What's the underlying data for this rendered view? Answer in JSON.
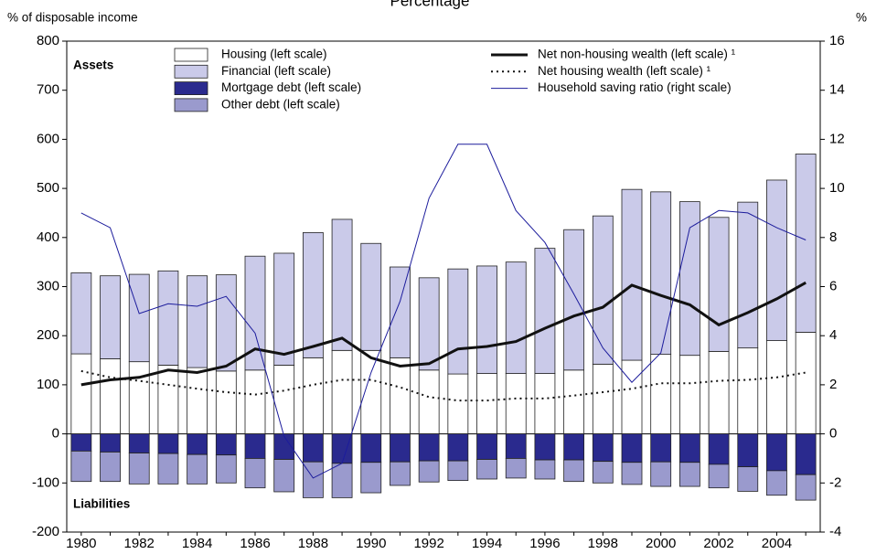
{
  "chart_data": {
    "type": "bar",
    "title": "Percentage",
    "y_label": "% of disposable income",
    "y2_label": "%",
    "annotations": [
      "Assets",
      "Liabilities"
    ],
    "categories": [
      "1980",
      null,
      "1982",
      null,
      "1984",
      null,
      "1986",
      null,
      "1988",
      null,
      "1990",
      null,
      "1992",
      null,
      "1994",
      null,
      "1996",
      null,
      "1998",
      null,
      "2000",
      null,
      "2002",
      null,
      "2004",
      null
    ],
    "stacked": true,
    "series": [
      {
        "name": "Housing (left scale)",
        "type": "bar",
        "color": "#ffffff",
        "values": [
          163,
          153,
          147,
          140,
          135,
          128,
          130,
          140,
          155,
          170,
          170,
          155,
          130,
          122,
          123,
          123,
          123,
          130,
          142,
          150,
          162,
          160,
          168,
          175,
          190,
          207
        ]
      },
      {
        "name": "Financial (left scale)",
        "type": "bar",
        "color": "#cacae9",
        "values": [
          165,
          169,
          178,
          192,
          187,
          196,
          232,
          228,
          255,
          267,
          218,
          185,
          188,
          214,
          219,
          227,
          255,
          286,
          302,
          348,
          331,
          313,
          273,
          297,
          327,
          363
        ]
      },
      {
        "name": "Mortgage debt (left scale)",
        "type": "bar",
        "color": "#2a2a8e",
        "values": [
          -35,
          -37,
          -39,
          -40,
          -42,
          -43,
          -50,
          -52,
          -57,
          -60,
          -58,
          -57,
          -55,
          -55,
          -52,
          -50,
          -53,
          -53,
          -56,
          -58,
          -57,
          -58,
          -62,
          -67,
          -75,
          -83
        ]
      },
      {
        "name": "Other debt (left scale)",
        "type": "bar",
        "color": "#9a9acd",
        "values": [
          -62,
          -60,
          -63,
          -62,
          -60,
          -57,
          -60,
          -66,
          -73,
          -70,
          -62,
          -48,
          -43,
          -40,
          -40,
          -40,
          -39,
          -44,
          -44,
          -45,
          -50,
          -49,
          -48,
          -50,
          -50,
          -52
        ]
      },
      {
        "name": "Net non-housing wealth (left scale) ¹",
        "type": "line",
        "color": "#111111",
        "width": 3,
        "values": [
          100,
          110,
          115,
          130,
          125,
          138,
          173,
          162,
          178,
          195,
          155,
          138,
          143,
          173,
          178,
          188,
          215,
          240,
          258,
          303,
          282,
          263,
          222,
          247,
          275,
          308
        ]
      },
      {
        "name": "Net housing wealth (left scale) ¹",
        "type": "line",
        "color": "#111111",
        "width": 2,
        "dash": "dotted",
        "values": [
          128,
          115,
          108,
          100,
          92,
          85,
          80,
          88,
          100,
          110,
          110,
          95,
          75,
          68,
          68,
          72,
          72,
          78,
          85,
          92,
          103,
          103,
          108,
          110,
          115,
          125
        ]
      },
      {
        "name": "Household saving ratio (right scale)",
        "type": "line",
        "color": "#1c1c9c",
        "width": 1,
        "axis": "y2",
        "values": [
          9.0,
          8.4,
          4.9,
          5.3,
          5.2,
          5.6,
          4.1,
          -0.1,
          -1.8,
          -1.2,
          2.5,
          5.4,
          9.6,
          11.8,
          11.8,
          9.1,
          7.8,
          5.7,
          3.5,
          2.1,
          3.3,
          8.4,
          9.1,
          9.0,
          8.4,
          7.9
        ]
      }
    ],
    "ylim": [
      -200,
      800
    ],
    "yticks": [
      -200,
      -100,
      0,
      100,
      200,
      300,
      400,
      500,
      600,
      700,
      800
    ],
    "y2lim": [
      -4,
      16
    ],
    "y2ticks": [
      -4,
      -2,
      0,
      2,
      4,
      6,
      8,
      10,
      12,
      14,
      16
    ]
  }
}
